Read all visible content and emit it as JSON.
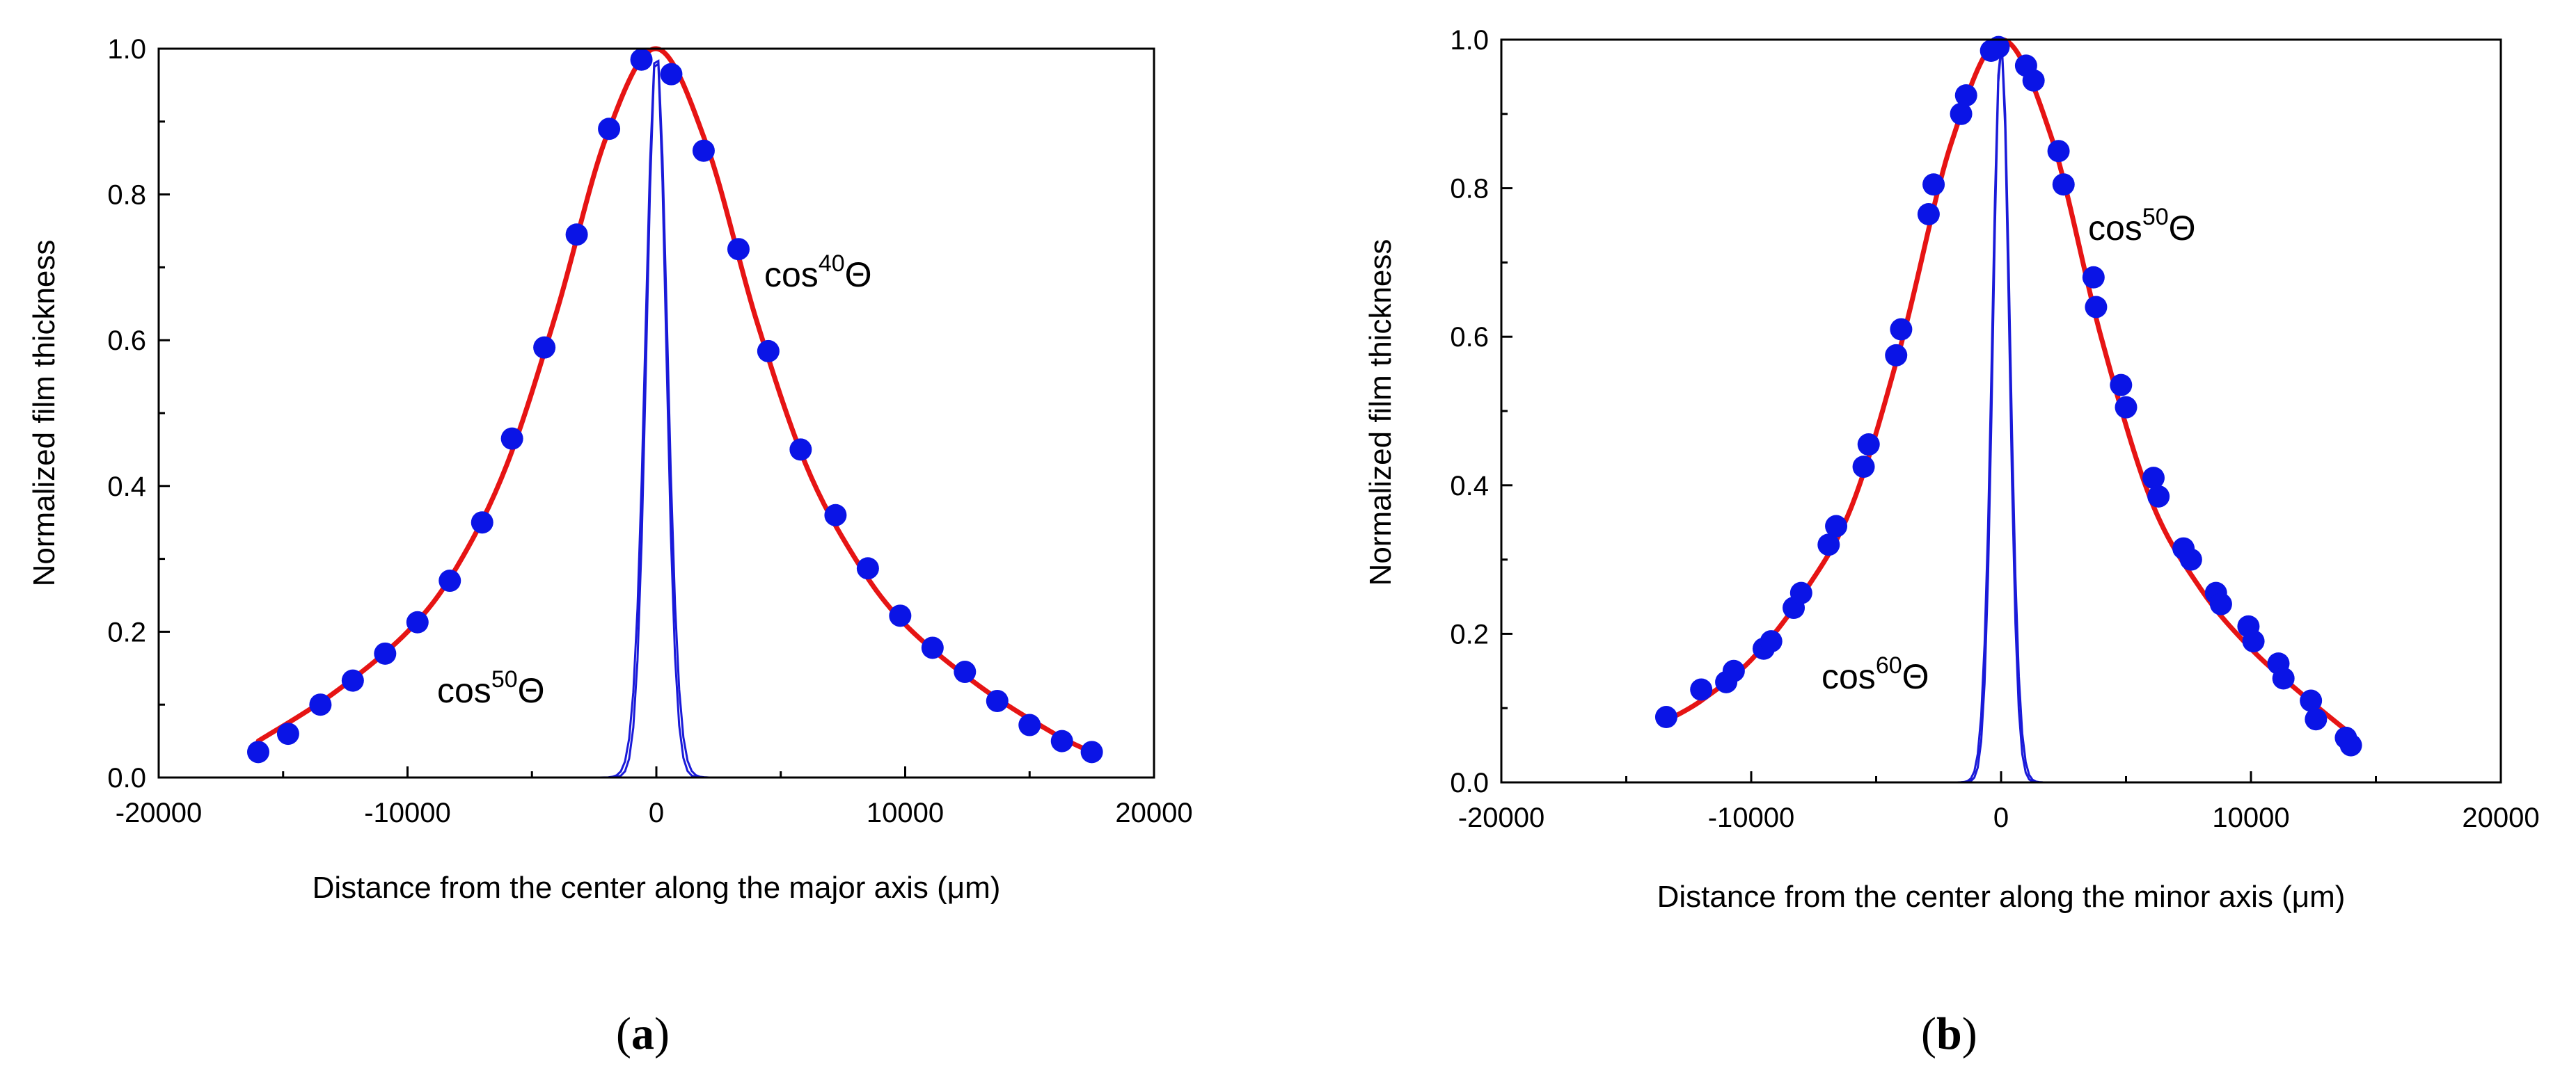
{
  "chart_data": [
    {
      "type": "line",
      "panel_label": "a",
      "xlabel": "Distance from the center along the major axis (μm)",
      "ylabel": "Normalized film thickness",
      "xlim": [
        -20000,
        20000
      ],
      "ylim": [
        0.0,
        1.0
      ],
      "xticks": [
        "-20000",
        "-10000",
        "0",
        "10000",
        "20000"
      ],
      "yticks": [
        "0.0",
        "0.2",
        "0.4",
        "0.6",
        "0.8",
        "1.0"
      ],
      "colors": {
        "points": "#0a14e6",
        "fit": "#e61414",
        "cosine": "#1a1ad9"
      },
      "series": [
        {
          "name": "measured",
          "kind": "scatter",
          "x": [
            -16000,
            -14800,
            -13500,
            -12200,
            -10900,
            -9600,
            -8300,
            -7000,
            -5800,
            -4500,
            -3200,
            -1900,
            -600,
            600,
            1900,
            3300,
            4500,
            5800,
            7200,
            8500,
            9800,
            11100,
            12400,
            13700,
            15000,
            16300,
            17500
          ],
          "y": [
            0.035,
            0.06,
            0.1,
            0.133,
            0.17,
            0.213,
            0.27,
            0.35,
            0.465,
            0.59,
            0.745,
            0.89,
            0.985,
            0.965,
            0.86,
            0.725,
            0.585,
            0.45,
            0.36,
            0.287,
            0.222,
            0.178,
            0.145,
            0.105,
            0.072,
            0.05,
            0.035
          ]
        },
        {
          "name": "fit",
          "kind": "line",
          "x": [
            -16000,
            -13000,
            -10000,
            -8000,
            -6000,
            -4000,
            -2000,
            0,
            2000,
            4000,
            6000,
            8000,
            10000,
            13000,
            16000,
            17500
          ],
          "y": [
            0.05,
            0.115,
            0.2,
            0.29,
            0.43,
            0.64,
            0.88,
            1.0,
            0.87,
            0.63,
            0.43,
            0.3,
            0.21,
            0.125,
            0.06,
            0.035
          ]
        },
        {
          "name": "cos40",
          "kind": "cosine",
          "exponent": 40,
          "x_range": [
            -16000,
            17500
          ]
        },
        {
          "name": "cos50",
          "kind": "cosine",
          "exponent": 50,
          "x_range": [
            -16000,
            17500
          ]
        }
      ],
      "annotations": [
        {
          "base": "cos",
          "sup": "40",
          "tail": "Θ"
        },
        {
          "base": "cos",
          "sup": "50",
          "tail": "Θ"
        }
      ]
    },
    {
      "type": "line",
      "panel_label": "b",
      "xlabel": "Distance from the center along the minor axis (μm)",
      "ylabel": "Normalized film thickness",
      "xlim": [
        -20000,
        20000
      ],
      "ylim": [
        0.0,
        1.0
      ],
      "xticks": [
        "-20000",
        "-10000",
        "0",
        "10000",
        "20000"
      ],
      "yticks": [
        "0.0",
        "0.2",
        "0.4",
        "0.6",
        "0.8",
        "1.0"
      ],
      "colors": {
        "points": "#0a14e6",
        "fit": "#e61414",
        "cosine": "#1a1ad9"
      },
      "series": [
        {
          "name": "measured",
          "kind": "scatter",
          "x": [
            -13400,
            -12000,
            -11000,
            -10700,
            -9500,
            -9200,
            -8300,
            -8000,
            -6900,
            -6600,
            -5500,
            -5300,
            -4200,
            -4000,
            -2900,
            -2700,
            -1600,
            -1400,
            -400,
            -100,
            1000,
            1300,
            2300,
            2500,
            3700,
            3800,
            4800,
            5000,
            6100,
            6300,
            7300,
            7600,
            8600,
            8800,
            9900,
            10100,
            11100,
            11300,
            12400,
            12600,
            13800,
            14000
          ],
          "y": [
            0.088,
            0.125,
            0.135,
            0.15,
            0.18,
            0.19,
            0.235,
            0.255,
            0.32,
            0.345,
            0.425,
            0.455,
            0.575,
            0.61,
            0.765,
            0.805,
            0.9,
            0.925,
            0.985,
            0.99,
            0.965,
            0.945,
            0.85,
            0.805,
            0.68,
            0.64,
            0.535,
            0.505,
            0.41,
            0.385,
            0.315,
            0.3,
            0.255,
            0.24,
            0.21,
            0.19,
            0.16,
            0.14,
            0.11,
            0.085,
            0.06,
            0.05
          ]
        },
        {
          "name": "fit",
          "kind": "line",
          "x": [
            -13400,
            -12000,
            -10000,
            -8000,
            -6000,
            -4000,
            -2000,
            0,
            2000,
            4000,
            6000,
            8000,
            10000,
            12000,
            14000
          ],
          "y": [
            0.083,
            0.11,
            0.165,
            0.25,
            0.37,
            0.59,
            0.86,
            1.0,
            0.87,
            0.6,
            0.38,
            0.26,
            0.18,
            0.12,
            0.065
          ]
        },
        {
          "name": "cos50",
          "kind": "cosine",
          "exponent": 50,
          "x_range": [
            -13400,
            14000
          ]
        },
        {
          "name": "cos60",
          "kind": "cosine",
          "exponent": 60,
          "x_range": [
            -13400,
            14000
          ]
        }
      ],
      "annotations": [
        {
          "base": "cos",
          "sup": "50",
          "tail": "Θ"
        },
        {
          "base": "cos",
          "sup": "60",
          "tail": "Θ"
        }
      ]
    }
  ]
}
